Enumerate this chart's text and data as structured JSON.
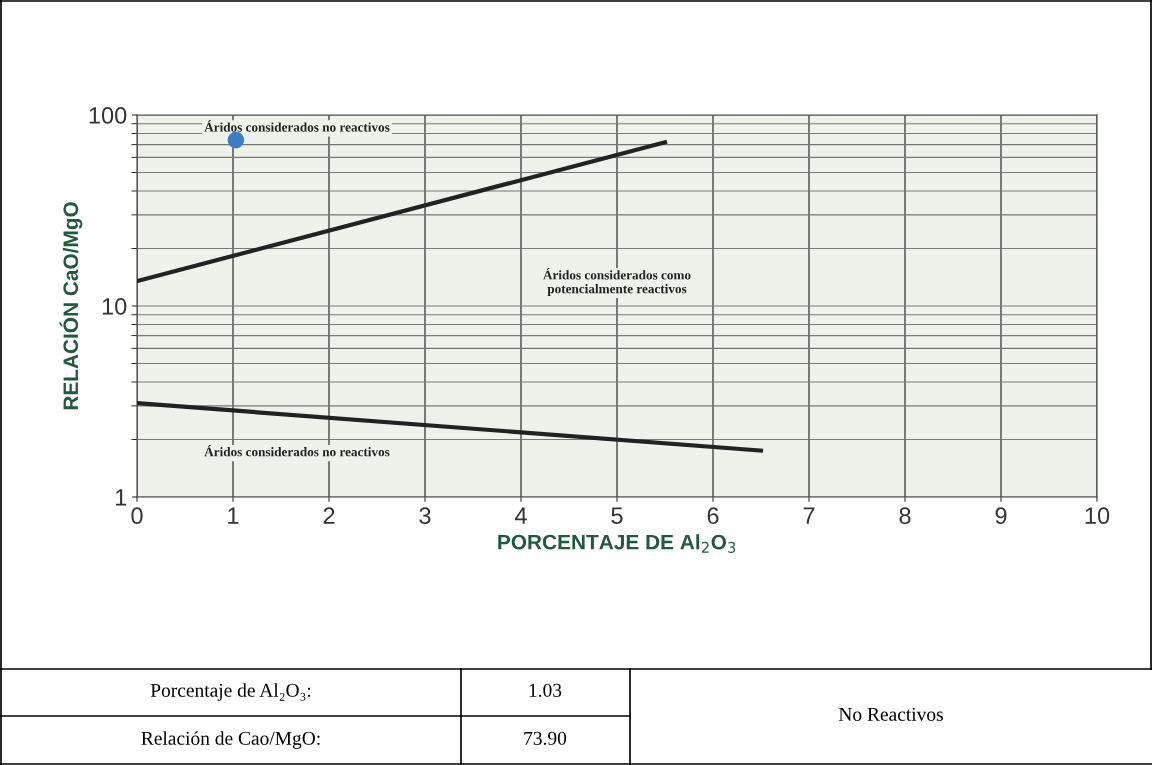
{
  "chart_data": {
    "type": "line",
    "xlabel": "PORCENTAJE DE Al$_{2}$O$_{3}$",
    "ylabel": "RELACIÓN CaO/MgO",
    "xlim": [
      0,
      10
    ],
    "xticks": [
      0,
      1,
      2,
      3,
      4,
      5,
      6,
      7,
      8,
      9,
      10
    ],
    "ylim": [
      1,
      100
    ],
    "yticks": [
      1,
      10,
      100
    ],
    "log": true,
    "grid": true,
    "series": [
      {
        "color": "#222222",
        "x": [
          0,
          5.5
        ],
        "values": [
          13.5,
          72
        ]
      },
      {
        "color": "#222222",
        "x": [
          0,
          6.5
        ],
        "values": [
          3.1,
          1.75
        ]
      },
      {
        "type": "scatter",
        "color": "#3a7fc4",
        "marker": "circle",
        "x": [
          1.03
        ],
        "values": [
          73.9
        ]
      }
    ],
    "annotations": [
      "Áridos considerados no reactivos",
      "Áridos considerados como\npotencialmente reactivos",
      "Áridos considerados no reactivos",
      "Porcentaje de Al₂O₃:",
      "1.03",
      "Relación de Cao/MgO:",
      "73.90",
      "No Reactivos"
    ]
  }
}
